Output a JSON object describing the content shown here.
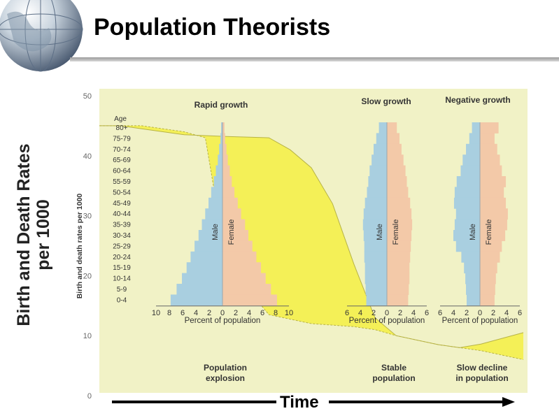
{
  "slide": {
    "title": "Population Theorists",
    "side_label_line1": "Birth and Death Rates",
    "side_label_line2": "per 1000",
    "time_label": "Time"
  },
  "colors": {
    "panel": "#f1f2c6",
    "yellow": "#f4ef4a",
    "male": "#a9cfe0",
    "female": "#f3c9a8",
    "outline": "#9aa6ab"
  },
  "chart_data": [
    {
      "type": "area",
      "ylabel": "Birth and death rates per 1000",
      "ylim": [
        0,
        50
      ],
      "yticks": [
        0,
        10,
        20,
        30,
        40,
        50
      ],
      "x_stages": [
        "Population explosion",
        "Stable population",
        "Slow decline in population"
      ],
      "series": [
        {
          "x": [
            0,
            0.05,
            0.1,
            0.2,
            0.3,
            0.4,
            0.45,
            0.5,
            0.55,
            0.6,
            0.65,
            0.7,
            0.8,
            0.85,
            0.9,
            1.0
          ],
          "values": [
            45,
            45,
            44.5,
            43.5,
            43.2,
            43,
            41,
            38,
            32,
            22,
            13,
            10,
            8.5,
            8,
            8.6,
            10.5
          ]
        },
        {
          "x": [
            0,
            0.05,
            0.1,
            0.15,
            0.2,
            0.25,
            0.3,
            0.4,
            0.5,
            0.6,
            0.65,
            0.7,
            0.8,
            0.85,
            0.9,
            1.0
          ],
          "values": [
            45,
            45,
            45,
            44.5,
            44,
            43,
            22,
            13.5,
            12,
            11.5,
            11,
            10,
            8.5,
            8,
            7.5,
            6
          ]
        }
      ]
    },
    {
      "type": "bar",
      "title": "Rapid growth",
      "xlabel": "Percent of population",
      "xticks": [
        "10",
        "8",
        "6",
        "4",
        "2",
        "0",
        "2",
        "4",
        "6",
        "8",
        "10"
      ],
      "legend": [
        "Male",
        "Female"
      ],
      "categories": [
        "80+",
        "75-79",
        "70-74",
        "65-69",
        "60-64",
        "55-59",
        "50-54",
        "45-49",
        "40-44",
        "35-39",
        "30-34",
        "25-29",
        "20-24",
        "15-19",
        "10-14",
        "5-9",
        "0-4"
      ],
      "male": [
        0.2,
        0.3,
        0.5,
        0.7,
        1.0,
        1.3,
        1.7,
        2.1,
        2.6,
        3.1,
        3.6,
        4.2,
        4.8,
        5.4,
        6.1,
        6.9,
        7.8
      ],
      "female": [
        0.3,
        0.4,
        0.6,
        0.8,
        1.1,
        1.4,
        1.8,
        2.3,
        2.8,
        3.4,
        3.9,
        4.5,
        5.1,
        5.8,
        6.5,
        7.3,
        8.2
      ]
    },
    {
      "type": "bar",
      "title": "Slow growth",
      "xlabel": "Percent of population",
      "xticks": [
        "6",
        "4",
        "2",
        "0",
        "2",
        "4",
        "6"
      ],
      "legend": [
        "Male",
        "Female"
      ],
      "categories": [
        "80+",
        "75-79",
        "70-74",
        "65-69",
        "60-64",
        "55-59",
        "50-54",
        "45-49",
        "40-44",
        "35-39",
        "30-34",
        "25-29",
        "20-24",
        "15-19",
        "10-14",
        "5-9",
        "0-4"
      ],
      "male": [
        1.2,
        1.6,
        2.0,
        2.3,
        2.6,
        2.8,
        3.0,
        3.3,
        3.5,
        3.6,
        3.5,
        3.4,
        3.4,
        3.3,
        3.3,
        3.2,
        3.1
      ],
      "female": [
        1.5,
        1.9,
        2.2,
        2.5,
        2.8,
        3.0,
        3.2,
        3.5,
        3.7,
        3.8,
        3.7,
        3.6,
        3.5,
        3.4,
        3.4,
        3.3,
        3.2
      ]
    },
    {
      "type": "bar",
      "title": "Negative growth",
      "xlabel": "Percent of population",
      "xticks": [
        "6",
        "4",
        "2",
        "0",
        "2",
        "4",
        "6"
      ],
      "legend": [
        "Male",
        "Female"
      ],
      "categories": [
        "80+",
        "75-79",
        "70-74",
        "65-69",
        "60-64",
        "55-59",
        "50-54",
        "45-49",
        "40-44",
        "35-39",
        "30-34",
        "25-29",
        "20-24",
        "15-19",
        "10-14",
        "5-9",
        "0-4"
      ],
      "male": [
        1.2,
        1.6,
        2.1,
        2.6,
        2.9,
        3.5,
        3.8,
        3.9,
        3.6,
        3.8,
        4.0,
        3.6,
        2.8,
        2.4,
        2.2,
        2.1,
        2.0
      ],
      "female": [
        2.8,
        2.2,
        2.6,
        3.0,
        3.3,
        3.9,
        3.6,
        3.9,
        4.2,
        4.1,
        3.8,
        3.3,
        3.0,
        2.6,
        2.4,
        2.3,
        2.2
      ]
    }
  ]
}
